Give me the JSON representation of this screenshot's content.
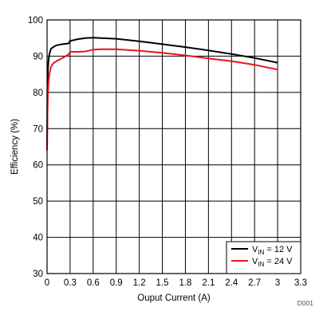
{
  "chart_data": {
    "type": "line",
    "xlabel": "Ouput Current (A)",
    "ylabel": "Efficiency (%)",
    "xlim": [
      0,
      3.3
    ],
    "ylim": [
      30,
      100
    ],
    "x_ticks": [
      "0",
      "0.3",
      "0.6",
      "0.9",
      "1.2",
      "1.5",
      "1.8",
      "2.1",
      "2.4",
      "2.7",
      "3",
      "3.3"
    ],
    "y_ticks": [
      "30",
      "40",
      "50",
      "60",
      "70",
      "80",
      "90",
      "100"
    ],
    "grid": true,
    "legend_position": "bottom-right",
    "figure_id": "D001",
    "series": [
      {
        "name": "VIN = 12 V",
        "legend": {
          "main": "V",
          "sub": "IN",
          "rest": " = 12 V"
        },
        "color": "#000000",
        "x": [
          0.0,
          0.005,
          0.01,
          0.02,
          0.03,
          0.05,
          0.08,
          0.12,
          0.2,
          0.28,
          0.3,
          0.4,
          0.5,
          0.6,
          0.7,
          0.9,
          1.2,
          1.5,
          1.8,
          2.1,
          2.4,
          2.7,
          3.0
        ],
        "y": [
          65,
          82,
          86,
          89,
          90.5,
          92,
          92.5,
          93,
          93.3,
          93.5,
          94.2,
          94.7,
          95.0,
          95.1,
          95.0,
          94.8,
          94.1,
          93.3,
          92.5,
          91.6,
          90.6,
          89.5,
          88.2
        ]
      },
      {
        "name": "VIN = 24 V",
        "legend": {
          "main": "V",
          "sub": "IN",
          "rest": " = 24 V"
        },
        "color": "#e8141c",
        "x": [
          0.0,
          0.005,
          0.01,
          0.02,
          0.03,
          0.05,
          0.08,
          0.12,
          0.2,
          0.28,
          0.3,
          0.4,
          0.5,
          0.6,
          0.7,
          0.9,
          1.2,
          1.5,
          1.8,
          2.1,
          2.4,
          2.7,
          3.0
        ],
        "y": [
          64,
          74,
          79,
          83,
          85,
          87,
          88,
          88.6,
          89.5,
          90.5,
          91.2,
          91.2,
          91.3,
          91.8,
          91.9,
          91.9,
          91.5,
          90.9,
          90.2,
          89.4,
          88.6,
          87.6,
          86.3
        ]
      }
    ]
  }
}
